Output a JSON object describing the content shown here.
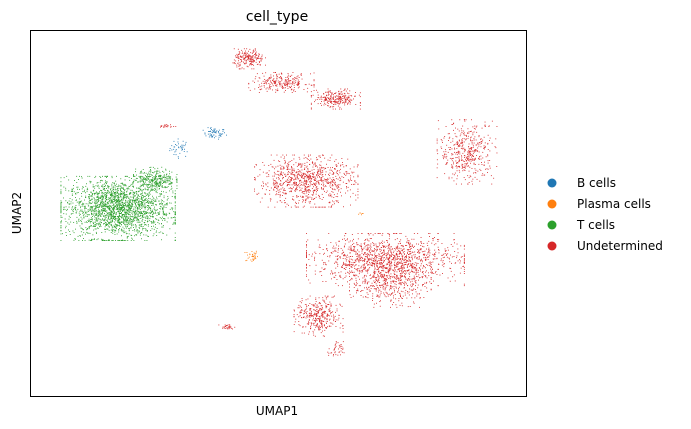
{
  "chart_data": {
    "type": "scatter",
    "title": "cell_type",
    "xlabel": "UMAP1",
    "ylabel": "UMAP2",
    "xlim": [
      -10,
      10
    ],
    "ylim": [
      -10,
      10
    ],
    "ticks": false,
    "grid": false,
    "legend_position": "right",
    "series": [
      {
        "name": "B cells",
        "color": "#1f77b4",
        "clusters": [
          {
            "cx": -4.0,
            "cy": 3.6,
            "rx": 0.4,
            "ry": 0.5,
            "n": 40
          },
          {
            "cx": -2.6,
            "cy": 4.4,
            "rx": 0.45,
            "ry": 0.3,
            "n": 60
          }
        ]
      },
      {
        "name": "Plasma cells",
        "color": "#ff7f0e",
        "clusters": [
          {
            "cx": -1.1,
            "cy": -2.3,
            "rx": 0.25,
            "ry": 0.35,
            "n": 35
          },
          {
            "cx": 3.3,
            "cy": 0.0,
            "rx": 0.15,
            "ry": 0.1,
            "n": 6
          }
        ]
      },
      {
        "name": "T cells",
        "color": "#2ca02c",
        "clusters": [
          {
            "cx": -6.5,
            "cy": 0.3,
            "rx": 2.1,
            "ry": 1.6,
            "n": 2200
          },
          {
            "cx": -5.0,
            "cy": 1.9,
            "rx": 0.8,
            "ry": 0.6,
            "n": 300
          }
        ]
      },
      {
        "name": "Undetermined",
        "color": "#d62728",
        "clusters": [
          {
            "cx": -4.5,
            "cy": 4.8,
            "rx": 0.3,
            "ry": 0.1,
            "n": 20
          },
          {
            "cx": -1.2,
            "cy": 8.5,
            "rx": 0.6,
            "ry": 0.5,
            "n": 200
          },
          {
            "cx": 0.1,
            "cy": 7.2,
            "rx": 1.2,
            "ry": 0.5,
            "n": 250
          },
          {
            "cx": 2.3,
            "cy": 6.3,
            "rx": 0.9,
            "ry": 0.5,
            "n": 250
          },
          {
            "cx": 1.1,
            "cy": 1.8,
            "rx": 1.9,
            "ry": 1.3,
            "n": 900
          },
          {
            "cx": 7.6,
            "cy": 3.4,
            "rx": 1.1,
            "ry": 1.6,
            "n": 450
          },
          {
            "cx": 4.3,
            "cy": -2.5,
            "rx": 2.9,
            "ry": 1.3,
            "n": 1300
          },
          {
            "cx": 4.5,
            "cy": -3.8,
            "rx": 1.5,
            "ry": 1.2,
            "n": 400
          },
          {
            "cx": 1.6,
            "cy": -5.6,
            "rx": 0.9,
            "ry": 1.0,
            "n": 350
          },
          {
            "cx": 2.3,
            "cy": -7.5,
            "rx": 0.3,
            "ry": 0.5,
            "n": 40
          },
          {
            "cx": -2.1,
            "cy": -6.2,
            "rx": 0.3,
            "ry": 0.15,
            "n": 30
          }
        ]
      }
    ]
  }
}
